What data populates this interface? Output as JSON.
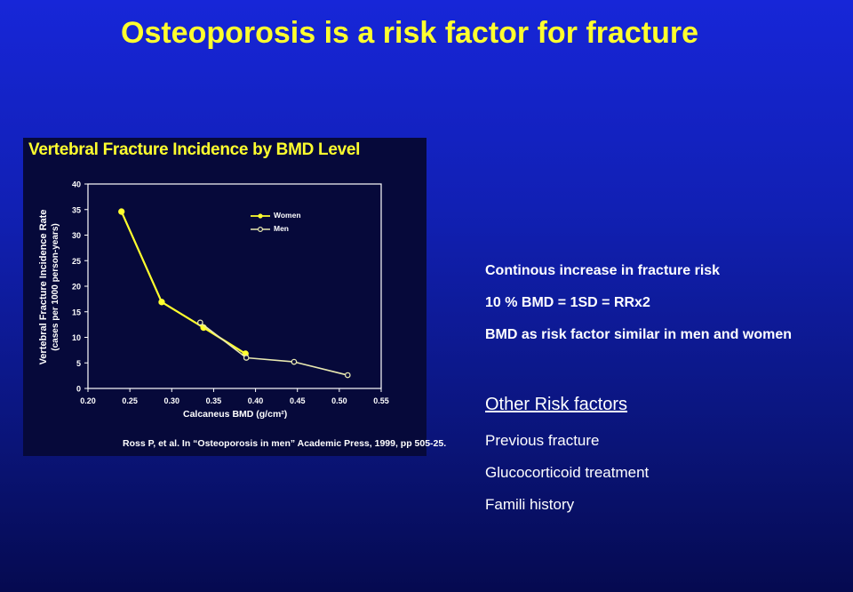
{
  "slide": {
    "title": "Osteoporosis is a risk factor for fracture"
  },
  "figure": {
    "title": "Vertebral Fracture Incidence by BMD Level",
    "citation": "Ross P, et al. In “Osteoporosis in men” Academic Press, 1999, pp 505-25."
  },
  "bullets": [
    "Continous increase in fracture risk",
    "10 % BMD = 1SD = RRx2",
    "BMD as risk factor similar in men and women"
  ],
  "risk_factors": {
    "heading": "Other Risk factors",
    "items": [
      "Previous fracture",
      "Glucocorticoid treatment",
      "Famili history"
    ]
  },
  "colors": {
    "title": "#ffff2e",
    "women_line": "#ffff2e",
    "men_line": "#e8e8b0",
    "background_top": "#1726d8",
    "background_bottom": "#050a50"
  },
  "chart_data": {
    "type": "line",
    "title": "Vertebral Fracture Incidence by BMD Level",
    "xlabel": "Calcaneus BMD (g/cm²)",
    "ylabel": "Vertebral Fracture Incidence Rate",
    "ylabel_sub": "(cases per 1000 person-years)",
    "xlim": [
      0.2,
      0.55
    ],
    "ylim": [
      0,
      40
    ],
    "x_ticks": [
      "0.20",
      "0.25",
      "0.30",
      "0.35",
      "0.40",
      "0.45",
      "0.50",
      "0.55"
    ],
    "y_ticks": [
      "0",
      "5",
      "10",
      "15",
      "20",
      "25",
      "30",
      "35",
      "40"
    ],
    "legend_position": "top-right",
    "series": [
      {
        "name": "Women",
        "marker": "filled",
        "x": [
          0.24,
          0.288,
          0.338,
          0.388
        ],
        "y": [
          34.6,
          16.9,
          11.9,
          6.8
        ]
      },
      {
        "name": "Men",
        "marker": "open",
        "x": [
          0.334,
          0.389,
          0.446,
          0.51
        ],
        "y": [
          12.9,
          6.0,
          5.2,
          2.6
        ]
      }
    ]
  }
}
